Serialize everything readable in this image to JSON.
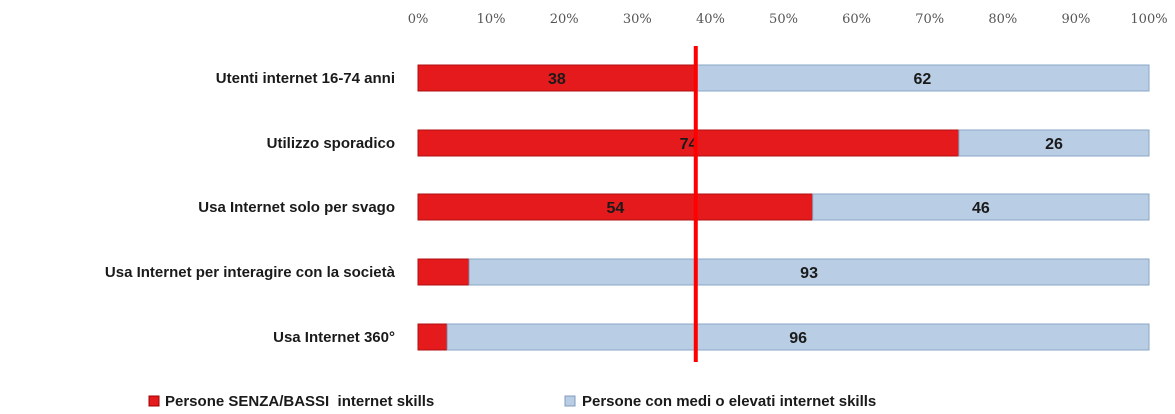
{
  "chart_data": {
    "type": "bar",
    "orientation": "horizontal",
    "stacked": true,
    "percent_stacked": true,
    "title": "",
    "xlabel": "",
    "ylabel": "",
    "xlim": [
      0,
      100
    ],
    "x_ticks": [
      "0%",
      "10%",
      "20%",
      "30%",
      "40%",
      "50%",
      "60%",
      "70%",
      "80%",
      "90%",
      "100%"
    ],
    "categories": [
      "Utenti internet 16-74 anni",
      "Utilizzo sporadico",
      "Usa Internet solo per svago",
      "Usa Internet  per interagire con la società",
      "Usa Internet 360°"
    ],
    "series": [
      {
        "name": "Persone SENZA/BASSI  internet skills",
        "values": [
          38,
          74,
          54,
          7,
          4
        ],
        "labels": [
          "38",
          "74",
          "54",
          "",
          ""
        ],
        "color": "#e41a1c"
      },
      {
        "name": "Persone con medi o elevati internet skills",
        "values": [
          62,
          26,
          46,
          93,
          96
        ],
        "labels": [
          "62",
          "26",
          "46",
          "93",
          "96"
        ],
        "color": "#b9cde5"
      }
    ],
    "reference_line": {
      "value": 38,
      "color": "#ff0000"
    },
    "grid": false,
    "legend_position": "bottom"
  }
}
